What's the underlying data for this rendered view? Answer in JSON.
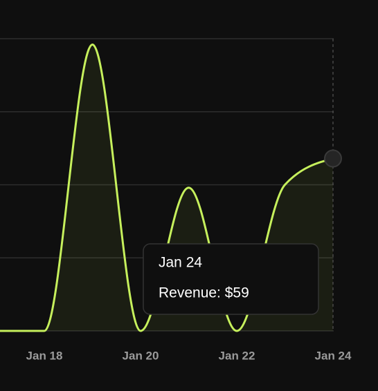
{
  "chart_data": {
    "type": "area",
    "categories": [
      null,
      "Jan 18",
      null,
      "Jan 20",
      null,
      "Jan 22",
      null,
      "Jan 24"
    ],
    "series": [
      {
        "name": "Revenue",
        "color": "#c6f05c",
        "values": [
          0,
          0,
          98,
          0,
          49,
          0,
          50,
          59
        ]
      }
    ],
    "ylim": [
      0,
      100
    ],
    "yticks": [
      0,
      25,
      50,
      75,
      100
    ],
    "grid": true,
    "tooltip": {
      "title": "Jan 24",
      "text": "Revenue: $59",
      "index": 7
    }
  }
}
